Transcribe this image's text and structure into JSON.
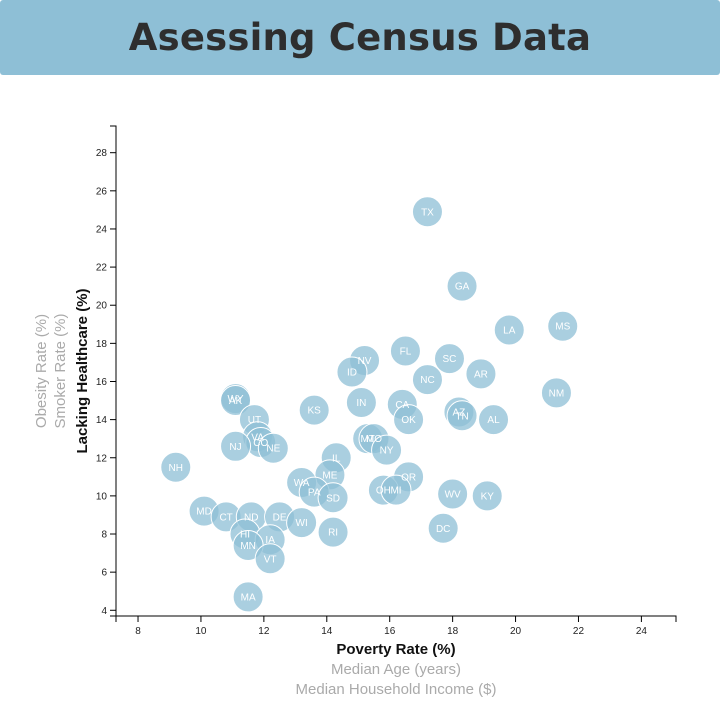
{
  "header": {
    "title": "Asessing Census Data"
  },
  "chart_data": {
    "type": "scatter",
    "xlabel": "Poverty Rate (%)",
    "ylabel": "Lacking Healthcare (%)",
    "x_options": [
      "Poverty Rate (%)",
      "Median Age (years)",
      "Median Household Income ($)"
    ],
    "y_options": [
      "Lacking Healthcare (%)",
      "Smoker Rate (%)",
      "Obesity Rate (%)"
    ],
    "active_x": "Poverty Rate (%)",
    "active_y": "Lacking Healthcare (%)",
    "xlim": [
      7.3,
      25.1
    ],
    "ylim": [
      3.7,
      29.4
    ],
    "x_ticks": [
      8,
      10,
      12,
      14,
      16,
      18,
      20,
      22,
      24
    ],
    "y_ticks": [
      4,
      6,
      8,
      10,
      12,
      14,
      16,
      18,
      20,
      22,
      24,
      26,
      28
    ],
    "grid": false,
    "marker_color": "#8ebfd6",
    "points": [
      {
        "abbr": "TX",
        "x": 17.2,
        "y": 24.9
      },
      {
        "abbr": "GA",
        "x": 18.3,
        "y": 21.0
      },
      {
        "abbr": "LA",
        "x": 19.8,
        "y": 18.7
      },
      {
        "abbr": "MS",
        "x": 21.5,
        "y": 18.9
      },
      {
        "abbr": "FL",
        "x": 16.5,
        "y": 17.6
      },
      {
        "abbr": "NV",
        "x": 15.2,
        "y": 17.1
      },
      {
        "abbr": "SC",
        "x": 17.9,
        "y": 17.2
      },
      {
        "abbr": "ID",
        "x": 14.8,
        "y": 16.5
      },
      {
        "abbr": "AR",
        "x": 18.9,
        "y": 16.4
      },
      {
        "abbr": "NC",
        "x": 17.2,
        "y": 16.1
      },
      {
        "abbr": "NM",
        "x": 21.3,
        "y": 15.4
      },
      {
        "abbr": "WY",
        "x": 11.1,
        "y": 15.1
      },
      {
        "abbr": "AK",
        "x": 11.1,
        "y": 15.0
      },
      {
        "abbr": "IN",
        "x": 15.1,
        "y": 14.9
      },
      {
        "abbr": "CA",
        "x": 16.4,
        "y": 14.8
      },
      {
        "abbr": "KS",
        "x": 13.6,
        "y": 14.5
      },
      {
        "abbr": "AZ",
        "x": 18.2,
        "y": 14.4
      },
      {
        "abbr": "TN",
        "x": 18.3,
        "y": 14.2
      },
      {
        "abbr": "UT",
        "x": 11.7,
        "y": 14.0
      },
      {
        "abbr": "AL",
        "x": 19.3,
        "y": 14.0
      },
      {
        "abbr": "OK",
        "x": 16.6,
        "y": 14.0
      },
      {
        "abbr": "VA",
        "x": 11.8,
        "y": 13.1
      },
      {
        "abbr": "MT",
        "x": 15.3,
        "y": 13.0
      },
      {
        "abbr": "MO",
        "x": 15.5,
        "y": 13.0
      },
      {
        "abbr": "CO",
        "x": 11.9,
        "y": 12.8
      },
      {
        "abbr": "NJ",
        "x": 11.1,
        "y": 12.6
      },
      {
        "abbr": "NE",
        "x": 12.3,
        "y": 12.5
      },
      {
        "abbr": "NY",
        "x": 15.9,
        "y": 12.4
      },
      {
        "abbr": "IL",
        "x": 14.3,
        "y": 12.0
      },
      {
        "abbr": "NH",
        "x": 9.2,
        "y": 11.5
      },
      {
        "abbr": "ME",
        "x": 14.1,
        "y": 11.1
      },
      {
        "abbr": "OR",
        "x": 16.6,
        "y": 11.0
      },
      {
        "abbr": "WA",
        "x": 13.2,
        "y": 10.7
      },
      {
        "abbr": "PA",
        "x": 13.6,
        "y": 10.2
      },
      {
        "abbr": "OH",
        "x": 15.8,
        "y": 10.3
      },
      {
        "abbr": "MI",
        "x": 16.2,
        "y": 10.3
      },
      {
        "abbr": "WV",
        "x": 18.0,
        "y": 10.1
      },
      {
        "abbr": "KY",
        "x": 19.1,
        "y": 10.0
      },
      {
        "abbr": "SD",
        "x": 14.2,
        "y": 9.9
      },
      {
        "abbr": "MD",
        "x": 10.1,
        "y": 9.2
      },
      {
        "abbr": "CT",
        "x": 10.8,
        "y": 8.9
      },
      {
        "abbr": "ND",
        "x": 11.6,
        "y": 8.9
      },
      {
        "abbr": "DE",
        "x": 12.5,
        "y": 8.9
      },
      {
        "abbr": "WI",
        "x": 13.2,
        "y": 8.6
      },
      {
        "abbr": "DC",
        "x": 17.7,
        "y": 8.3
      },
      {
        "abbr": "HI",
        "x": 11.4,
        "y": 8.0
      },
      {
        "abbr": "RI",
        "x": 14.2,
        "y": 8.1
      },
      {
        "abbr": "IA",
        "x": 12.2,
        "y": 7.7
      },
      {
        "abbr": "MN",
        "x": 11.5,
        "y": 7.4
      },
      {
        "abbr": "VT",
        "x": 12.2,
        "y": 6.7
      },
      {
        "abbr": "MA",
        "x": 11.5,
        "y": 4.7
      }
    ]
  }
}
